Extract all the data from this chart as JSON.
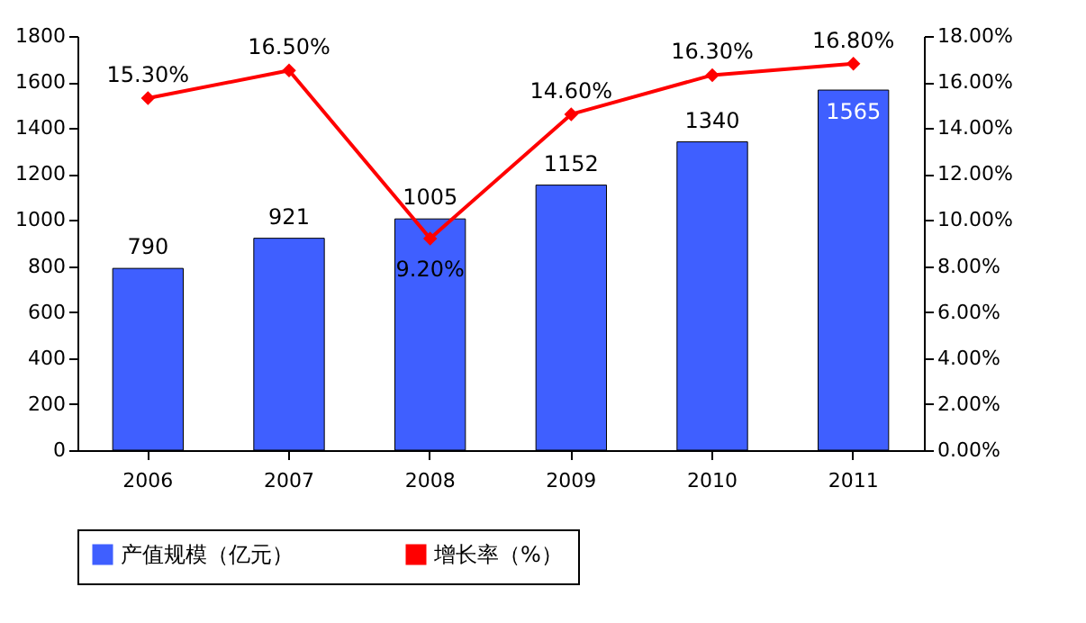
{
  "chart_data": {
    "type": "bar",
    "categories": [
      "2006",
      "2007",
      "2008",
      "2009",
      "2010",
      "2011"
    ],
    "series": [
      {
        "name": "产值规模（亿元）",
        "color": "#3f5fff",
        "values": [
          790,
          921,
          1005,
          1152,
          1340,
          1565
        ],
        "value_labels": [
          "790",
          "921",
          "1005",
          "1152",
          "1340",
          "1565"
        ]
      },
      {
        "name": "增长率（%）",
        "type": "line",
        "axis": "y2",
        "color": "#ff0000",
        "values": [
          15.3,
          16.5,
          9.2,
          14.6,
          16.3,
          16.8
        ],
        "value_labels": [
          "15.30%",
          "16.50%",
          "9.20%",
          "14.60%",
          "16.30%",
          "16.80%"
        ]
      }
    ],
    "ylim": [
      0,
      1800
    ],
    "yticks": [
      0,
      200,
      400,
      600,
      800,
      1000,
      1200,
      1400,
      1600,
      1800
    ],
    "y2lim": [
      0,
      18
    ],
    "y2ticks": [
      {
        "value": 0,
        "label": "0.00%"
      },
      {
        "value": 2,
        "label": "2.00%"
      },
      {
        "value": 4,
        "label": "4.00%"
      },
      {
        "value": 6,
        "label": "6.00%"
      },
      {
        "value": 8,
        "label": "8.00%"
      },
      {
        "value": 10,
        "label": "10.00%"
      },
      {
        "value": 12,
        "label": "12.00%"
      },
      {
        "value": 14,
        "label": "14.00%"
      },
      {
        "value": 16,
        "label": "16.00%"
      },
      {
        "value": 18,
        "label": "18.00%"
      }
    ],
    "legend": "bottom",
    "marker": "diamond"
  }
}
